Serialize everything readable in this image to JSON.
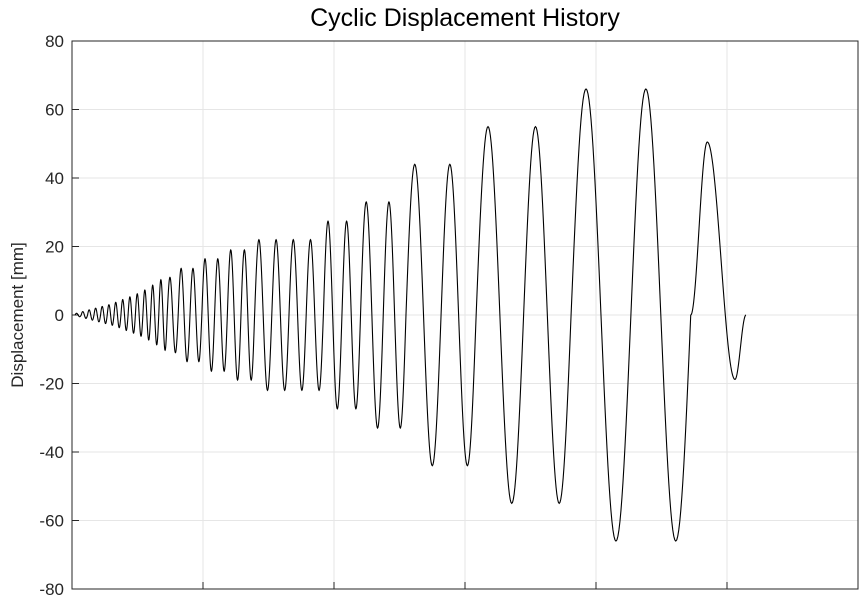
{
  "chart_data": {
    "type": "line",
    "title": "Cyclic Displacement History",
    "xlabel": "",
    "ylabel": "Displacement [mm]",
    "xlim": [
      0,
      1
    ],
    "ylim": [
      -80,
      80
    ],
    "y_ticks": [
      80,
      60,
      40,
      20,
      0,
      -20,
      -40,
      -60,
      -80
    ],
    "x_tick_labels_shown": false,
    "x_grid_count": 5,
    "grid": true,
    "legend": "none",
    "line_color": "#000000",
    "cycles": [
      {
        "amplitude": 0.5,
        "count": 1
      },
      {
        "amplitude": 1.0,
        "count": 1
      },
      {
        "amplitude": 1.5,
        "count": 1
      },
      {
        "amplitude": 2.0,
        "count": 1
      },
      {
        "amplitude": 2.5,
        "count": 1
      },
      {
        "amplitude": 3.0,
        "count": 1
      },
      {
        "amplitude": 3.7,
        "count": 1
      },
      {
        "amplitude": 4.5,
        "count": 1
      },
      {
        "amplitude": 5.3,
        "count": 1
      },
      {
        "amplitude": 6.2,
        "count": 1
      },
      {
        "amplitude": 7.3,
        "count": 1
      },
      {
        "amplitude": 8.7,
        "count": 1
      },
      {
        "amplitude": 10.3,
        "count": 1
      },
      {
        "amplitude": 11.0,
        "count": 1
      },
      {
        "amplitude": 13.6,
        "count": 2
      },
      {
        "amplitude": 16.4,
        "count": 2
      },
      {
        "amplitude": 19.0,
        "count": 2
      },
      {
        "amplitude": 22.0,
        "count": 4
      },
      {
        "amplitude": 27.4,
        "count": 2
      },
      {
        "amplitude": 33.0,
        "count": 2
      },
      {
        "amplitude": 44.0,
        "count": 2
      },
      {
        "amplitude": 55.0,
        "count": 2
      },
      {
        "amplitude": 66.0,
        "count": 2
      }
    ],
    "end_segment": {
      "peak": 50.5,
      "trough": -18.8,
      "final": 0
    }
  }
}
